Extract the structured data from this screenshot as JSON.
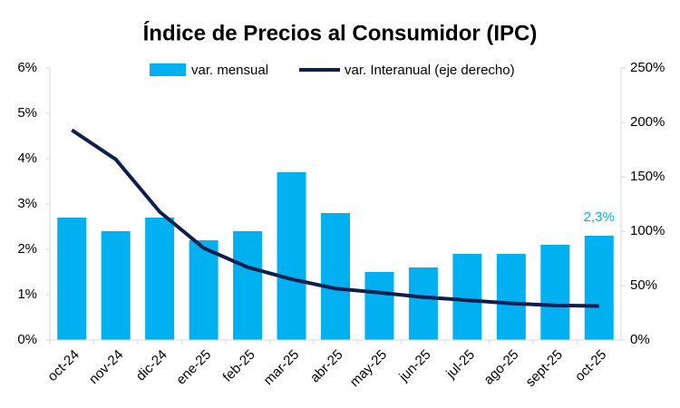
{
  "chart_data": {
    "type": "bar_line",
    "title": "Índice de Precios al Consumidor (IPC)",
    "categories": [
      "oct-24",
      "nov-24",
      "dic-24",
      "ene-25",
      "feb-25",
      "mar-25",
      "abr-25",
      "may-25",
      "jun-25",
      "jul-25",
      "ago-25",
      "sept-25",
      "oct-25"
    ],
    "series": [
      {
        "name": "var. mensual",
        "type": "bar",
        "color": "#00b0f0",
        "axis": "y",
        "values": [
          2.7,
          2.4,
          2.7,
          2.2,
          2.4,
          3.7,
          2.8,
          1.5,
          1.6,
          1.9,
          1.9,
          2.1,
          2.3
        ],
        "value_labels": [
          null,
          null,
          null,
          null,
          null,
          null,
          null,
          null,
          null,
          null,
          null,
          null,
          "2,3%"
        ]
      },
      {
        "name": "var. Interanual (eje derecho)",
        "type": "line",
        "color": "#0d1f4f",
        "axis": "y2",
        "values": [
          193,
          166,
          117.8,
          84.5,
          66.9,
          55.9,
          47.3,
          43.5,
          39.4,
          36.6,
          33.6,
          31.8,
          31.3
        ]
      }
    ],
    "ylim": [
      0,
      6
    ],
    "yticks": [
      {
        "value": 0,
        "label": "0%"
      },
      {
        "value": 1,
        "label": "1%"
      },
      {
        "value": 2,
        "label": "2%"
      },
      {
        "value": 3,
        "label": "3%"
      },
      {
        "value": 4,
        "label": "4%"
      },
      {
        "value": 5,
        "label": "5%"
      },
      {
        "value": 6,
        "label": "6%"
      }
    ],
    "y2lim": [
      0,
      250
    ],
    "y2ticks": [
      {
        "value": 0,
        "label": "0%"
      },
      {
        "value": 50,
        "label": "50%"
      },
      {
        "value": 100,
        "label": "100%"
      },
      {
        "value": 150,
        "label": "150%"
      },
      {
        "value": 200,
        "label": "200%"
      },
      {
        "value": 250,
        "label": "250%"
      }
    ],
    "legend": "top"
  }
}
